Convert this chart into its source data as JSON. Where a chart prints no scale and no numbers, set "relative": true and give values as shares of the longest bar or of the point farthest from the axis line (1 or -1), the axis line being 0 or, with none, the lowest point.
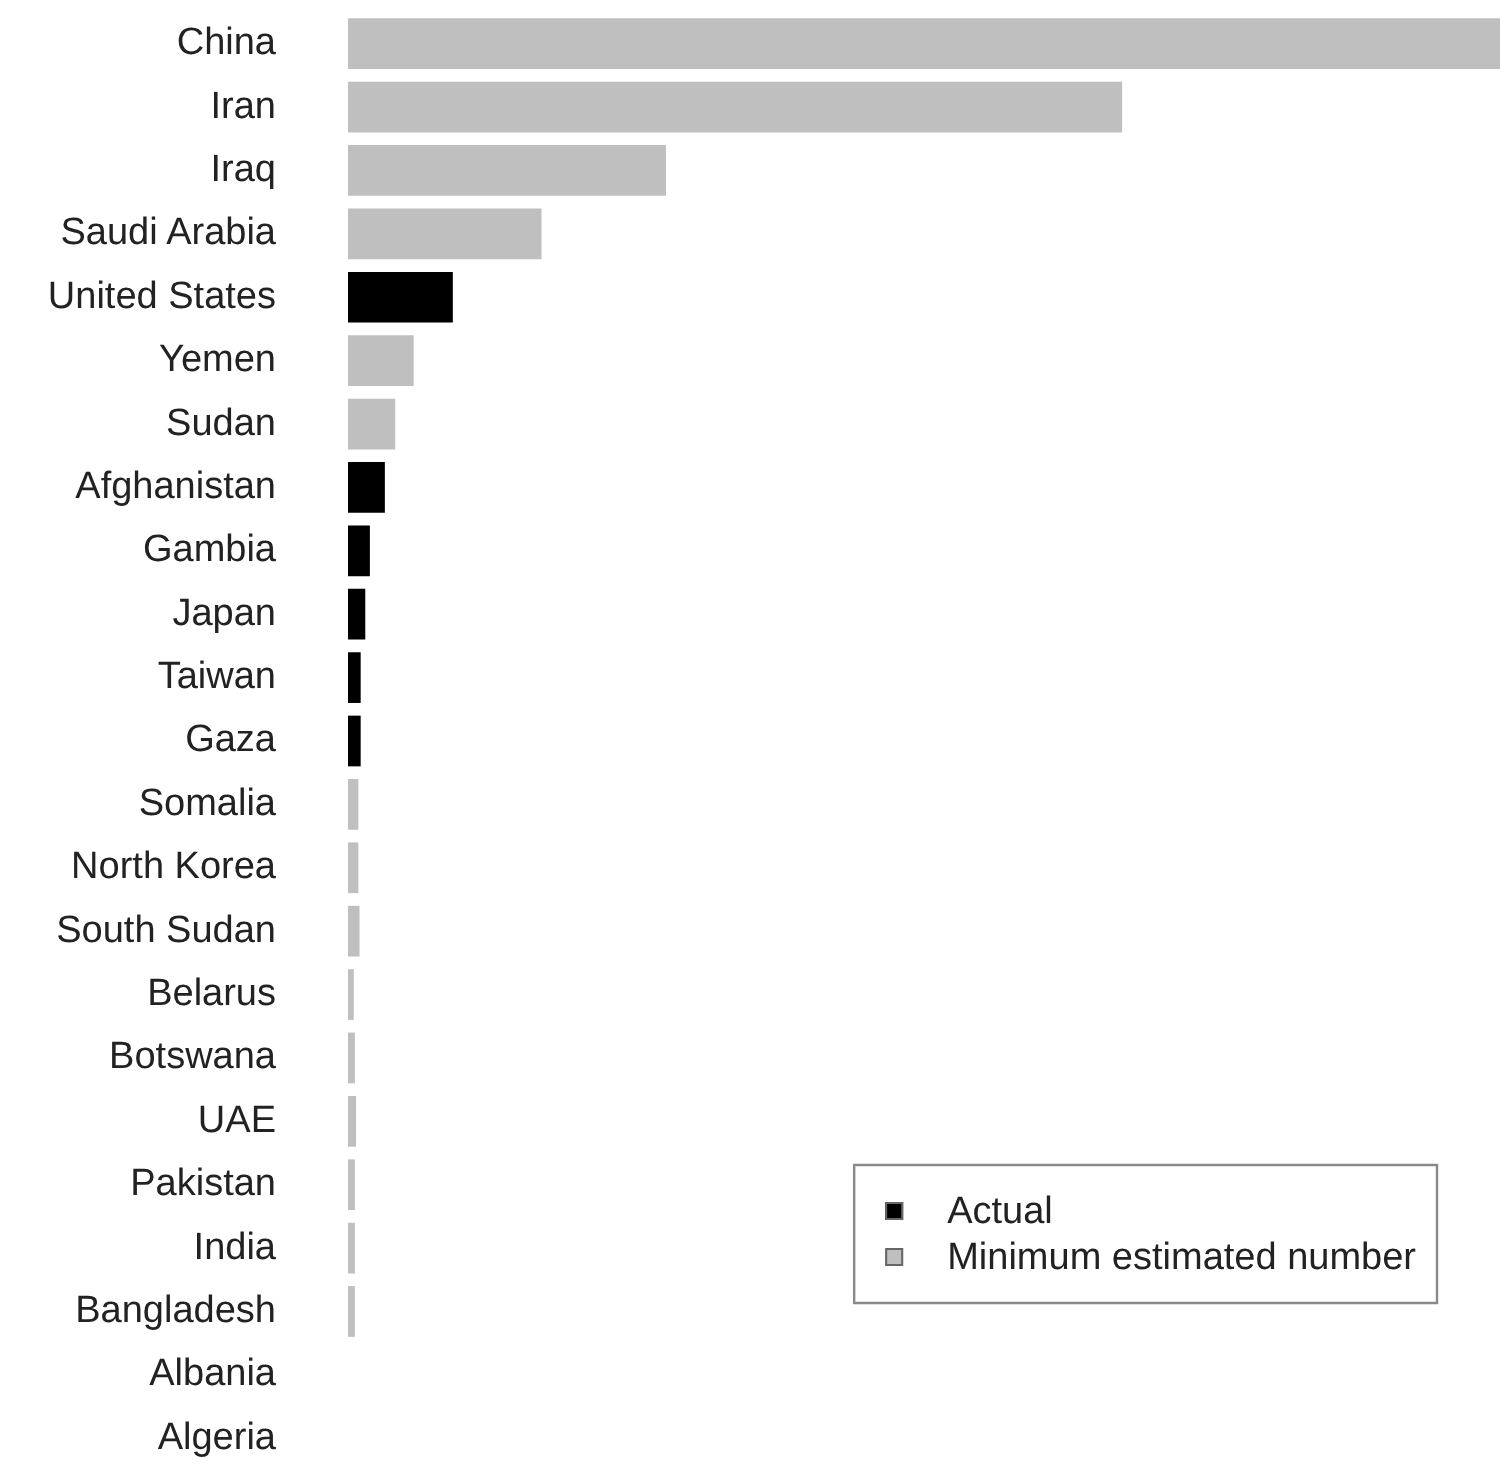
{
  "chart_data": {
    "type": "bar",
    "orientation": "horizontal",
    "stacked": true,
    "relative": true,
    "legend": "bottom right",
    "categories": [
      "China",
      "Iran",
      "Iraq",
      "Saudi Arabia",
      "United States",
      "Yemen",
      "Sudan",
      "Afghanistan",
      "Gambia",
      "Japan",
      "Taiwan",
      "Gaza",
      "Somalia",
      "North Korea",
      "South Sudan",
      "Belarus",
      "Botswana",
      "UAE",
      "Pakistan",
      "India",
      "Bangladesh",
      "Albania",
      "Algeria"
    ],
    "series": [
      {
        "name": "Actual",
        "color": "#000000",
        "values": [
          null,
          null,
          null,
          null,
          0.091,
          null,
          null,
          0.032,
          0.019,
          0.015,
          0.011,
          0.011,
          null,
          null,
          null,
          null,
          null,
          null,
          null,
          null,
          null,
          null,
          null
        ]
      },
      {
        "name": "Minimum estimated number",
        "color": "#bfbfbf",
        "values": [
          1,
          0.672,
          0.276,
          0.168,
          null,
          0.057,
          0.041,
          null,
          null,
          null,
          null,
          null,
          0.009,
          0.009,
          0.01,
          0.005,
          0.006,
          0.007,
          0.006,
          0.006,
          0.006,
          null,
          null
        ]
      }
    ]
  }
}
